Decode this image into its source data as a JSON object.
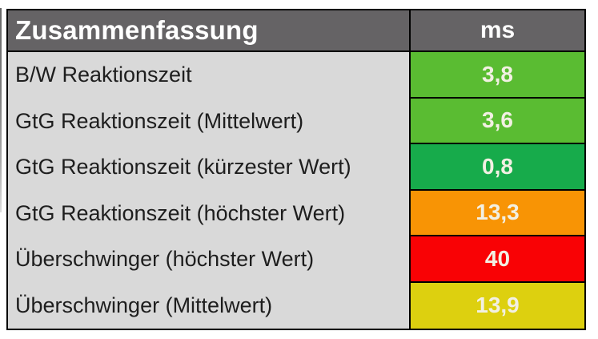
{
  "colors": {
    "page_bg": "#ffffff",
    "table_border": "#000000",
    "header_bg": "#656365",
    "header_text": "#ffffff",
    "row_label_bg": "#d9d9d9",
    "row_label_text": "#1e1e1e",
    "value_text": "#f2f0e3",
    "good_green": "#5abc32",
    "best_green": "#17ab4b",
    "warn_orange": "#f89405",
    "bad_red": "#f90205",
    "mid_yellow": "#ddd00f"
  },
  "chart_data": {
    "type": "table",
    "title": "Zusammenfassung",
    "unit": "ms",
    "rows": [
      {
        "label": "B/W Reaktionszeit",
        "value": "3,8",
        "value_num": 3.8,
        "color": "#5abc32",
        "rating": "good"
      },
      {
        "label": "GtG Reaktionszeit (Mittelwert)",
        "value": "3,6",
        "value_num": 3.6,
        "color": "#5abc32",
        "rating": "good"
      },
      {
        "label": "GtG Reaktionszeit (kürzester Wert)",
        "value": "0,8",
        "value_num": 0.8,
        "color": "#17ab4b",
        "rating": "best"
      },
      {
        "label": "GtG Reaktionszeit (höchster Wert)",
        "value": "13,3",
        "value_num": 13.3,
        "color": "#f89405",
        "rating": "warn"
      },
      {
        "label": "Überschwinger (höchster Wert)",
        "value": "40",
        "value_num": 40,
        "color": "#f90205",
        "rating": "bad"
      },
      {
        "label": "Überschwinger (Mittelwert)",
        "value": "13,9",
        "value_num": 13.9,
        "color": "#ddd00f",
        "rating": "mid"
      }
    ]
  }
}
